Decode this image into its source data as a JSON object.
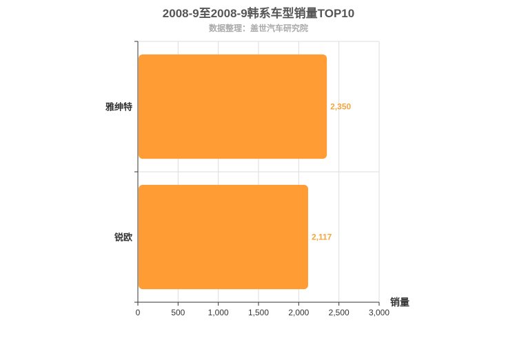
{
  "chart_data": {
    "type": "bar",
    "orientation": "horizontal",
    "title": "2008-9至2008-9韩系车型销量TOP10",
    "subtitle": "数据整理：盖世汽车研究院",
    "categories": [
      "雅绅特",
      "锐欧"
    ],
    "values": [
      2350,
      2117
    ],
    "data_labels": [
      "2,350",
      "2,117"
    ],
    "xlabel": "销量",
    "xlim": [
      0,
      3000
    ],
    "xticks": [
      0,
      500,
      1000,
      1500,
      2000,
      2500,
      3000
    ],
    "xtick_labels": [
      "0",
      "500",
      "1,000",
      "1,500",
      "2,000",
      "2,500",
      "3,000"
    ],
    "grid": true,
    "bar_color": "#ff9c33",
    "label_color": "#f5a540"
  }
}
